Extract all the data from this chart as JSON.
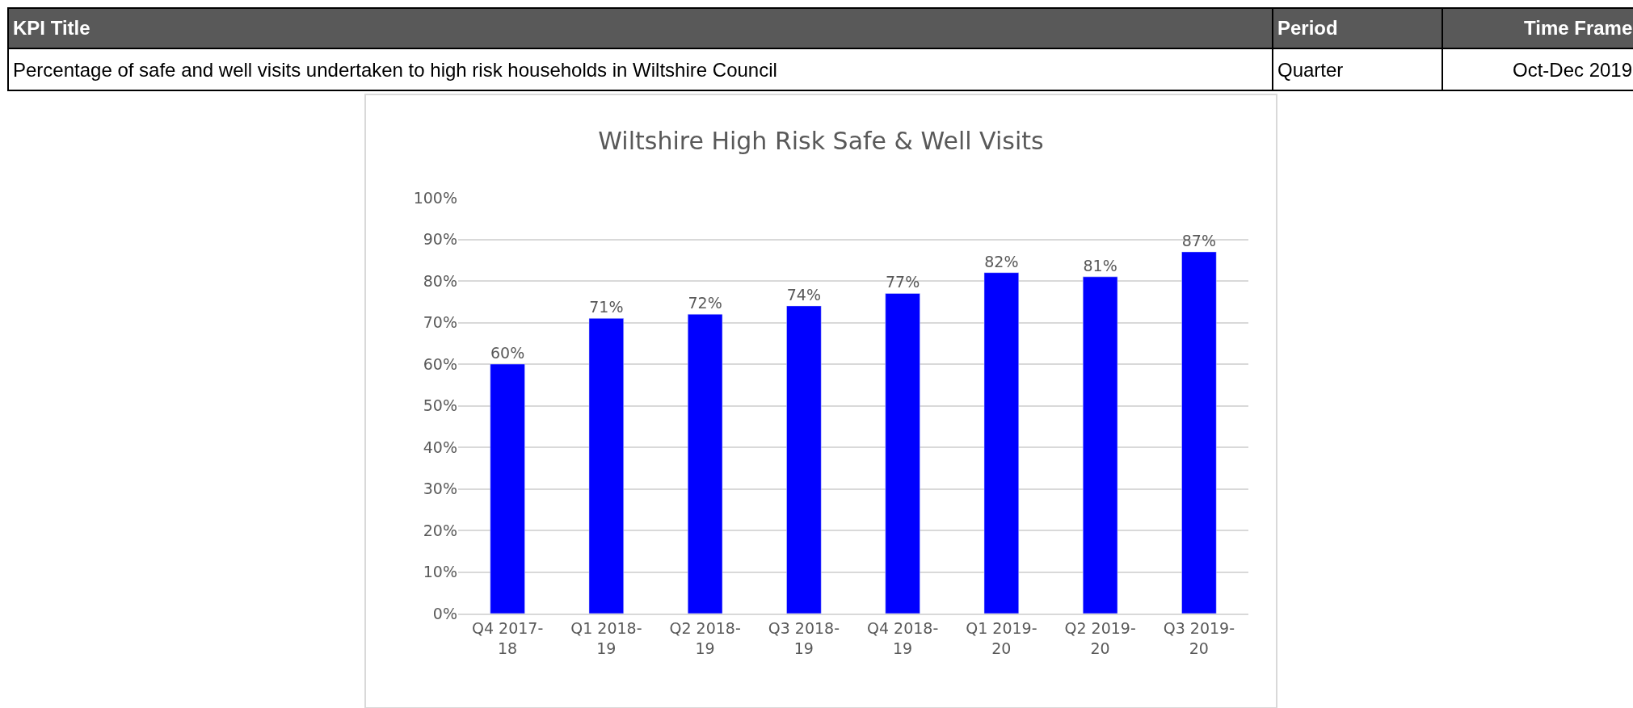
{
  "chart_data": {
    "type": "bar",
    "title": "Wiltshire High Risk Safe & Well Visits",
    "categories": [
      "Q4 2017-18",
      "Q1 2018-19",
      "Q2 2018-19",
      "Q3 2018-19",
      "Q4 2018-19",
      "Q1 2019-20",
      "Q2 2019-20",
      "Q3 2019-20"
    ],
    "values": [
      60,
      71,
      72,
      74,
      77,
      82,
      81,
      87
    ],
    "color": "#0000ff",
    "value_labels": [
      "60%",
      "71%",
      "72%",
      "74%",
      "77%",
      "82%",
      "81%",
      "87%"
    ],
    "ylim": [
      0,
      100
    ],
    "yticks": [
      {
        "value": 0,
        "label": "0%"
      },
      {
        "value": 10,
        "label": "10%"
      },
      {
        "value": 20,
        "label": "20%"
      },
      {
        "value": 30,
        "label": "30%"
      },
      {
        "value": 40,
        "label": "40%"
      },
      {
        "value": 50,
        "label": "50%"
      },
      {
        "value": 60,
        "label": "60%"
      },
      {
        "value": 70,
        "label": "70%"
      },
      {
        "value": 80,
        "label": "80%"
      },
      {
        "value": 90,
        "label": "90%"
      },
      {
        "value": 100,
        "label": "100%"
      }
    ],
    "grid": "y",
    "annotations": [
      "KPI Title",
      "Period",
      "Time Frame",
      "Percentage of safe and well visits undertaken to high risk households in Wiltshire Council",
      "Quarter",
      "Oct-Dec 2019"
    ]
  }
}
